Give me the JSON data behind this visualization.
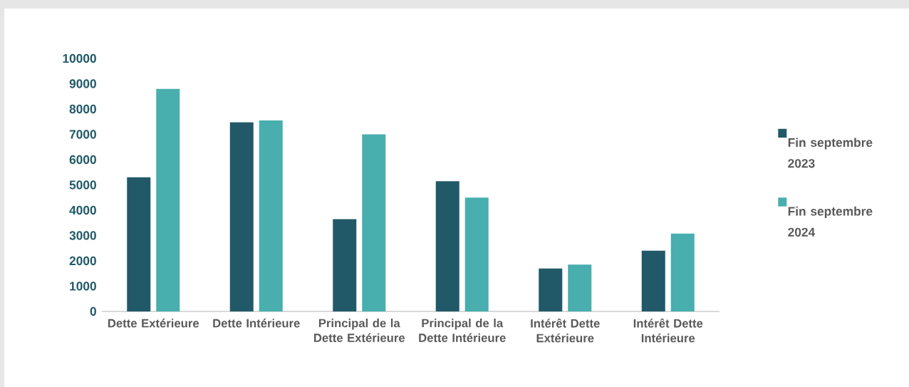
{
  "chart_data": {
    "type": "bar",
    "categories": [
      "Dette Extérieure",
      "Dette Intérieure",
      "Principal de la Dette Extérieure",
      "Principal de la Dette Intérieure",
      "Intérêt Dette Extérieure",
      "Intérêt Dette Intérieure"
    ],
    "series": [
      {
        "name": "Fin septembre 2023",
        "color": "#215968",
        "values": [
          5300,
          7480,
          3650,
          5150,
          1700,
          2400
        ]
      },
      {
        "name": "Fin septembre 2024",
        "color": "#48aeae",
        "values": [
          8800,
          7550,
          7000,
          4500,
          1850,
          3080
        ]
      }
    ],
    "ylim": [
      0,
      10000
    ],
    "yticks": [
      0,
      1000,
      2000,
      3000,
      4000,
      5000,
      6000,
      7000,
      8000,
      9000,
      10000
    ],
    "legend": "right"
  }
}
